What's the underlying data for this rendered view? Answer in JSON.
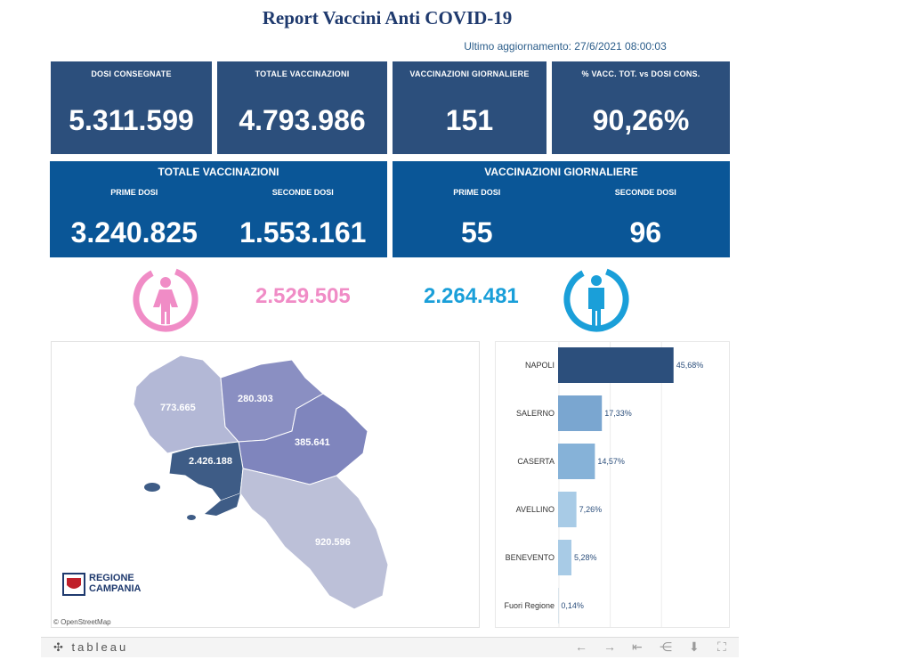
{
  "header": {
    "title": "Report Vaccini Anti COVID-19",
    "updated": "Ultimo aggiornamento: 27/6/2021 08:00:03"
  },
  "kpis": [
    {
      "label": "DOSI  CONSEGNATE",
      "value": "5.311.599"
    },
    {
      "label": "TOTALE VACCINAZIONI",
      "value": "4.793.986"
    },
    {
      "label": "VACCINAZIONI GIORNALIERE",
      "value": "151"
    },
    {
      "label": "% VACC. TOT. vs DOSI CONS.",
      "value": "90,26%"
    }
  ],
  "totals": {
    "title": "TOTALE VACCINAZIONI",
    "first_label": "PRIME DOSI",
    "first_value": "3.240.825",
    "second_label": "SECONDE DOSI",
    "second_value": "1.553.161"
  },
  "daily": {
    "title": "VACCINAZIONI GIORNALIERE",
    "first_label": "PRIME DOSI",
    "first_value": "55",
    "second_label": "SECONDE DOSI",
    "second_value": "96"
  },
  "gender": {
    "female_value": "2.529.505",
    "female_color": "#f08cc6",
    "female_icon": "female-person-icon",
    "male_value": "2.264.481",
    "male_color": "#1a9fd9",
    "male_icon": "male-person-icon"
  },
  "map": {
    "regions": [
      {
        "name": "Caserta",
        "value": "773.665",
        "color": "#b3b8d6"
      },
      {
        "name": "Benevento",
        "value": "280.303",
        "color": "#8a8fc2"
      },
      {
        "name": "Avellino",
        "value": "385.641",
        "color": "#7f85bd"
      },
      {
        "name": "Napoli",
        "value": "2.426.188",
        "color": "#3e5c86"
      },
      {
        "name": "Salerno",
        "value": "920.596",
        "color": "#bcc0d8"
      }
    ],
    "logo_line1": "REGIONE",
    "logo_line2": "CAMPANIA",
    "attribution": "© OpenStreetMap"
  },
  "chart_data": {
    "type": "bar",
    "orientation": "horizontal",
    "categories": [
      "NAPOLI",
      "SALERNO",
      "CASERTA",
      "AVELLINO",
      "BENEVENTO",
      "Fuori Regione"
    ],
    "values": [
      45.68,
      17.33,
      14.57,
      7.26,
      5.28,
      0.14
    ],
    "labels": [
      "45,68%",
      "17,33%",
      "14,57%",
      "7,26%",
      "5,28%",
      "0,14%"
    ],
    "colors": [
      "#2c4f7c",
      "#7aa6d0",
      "#86b2d8",
      "#a8cbe6",
      "#a8cbe6",
      "#c7dbeb"
    ],
    "xlim": [
      0,
      50
    ],
    "grid": true
  },
  "footer": {
    "logo": "tableau",
    "buttons": [
      "undo-icon",
      "redo-icon",
      "revert-icon",
      "share-icon",
      "download-icon",
      "fullscreen-icon"
    ]
  }
}
